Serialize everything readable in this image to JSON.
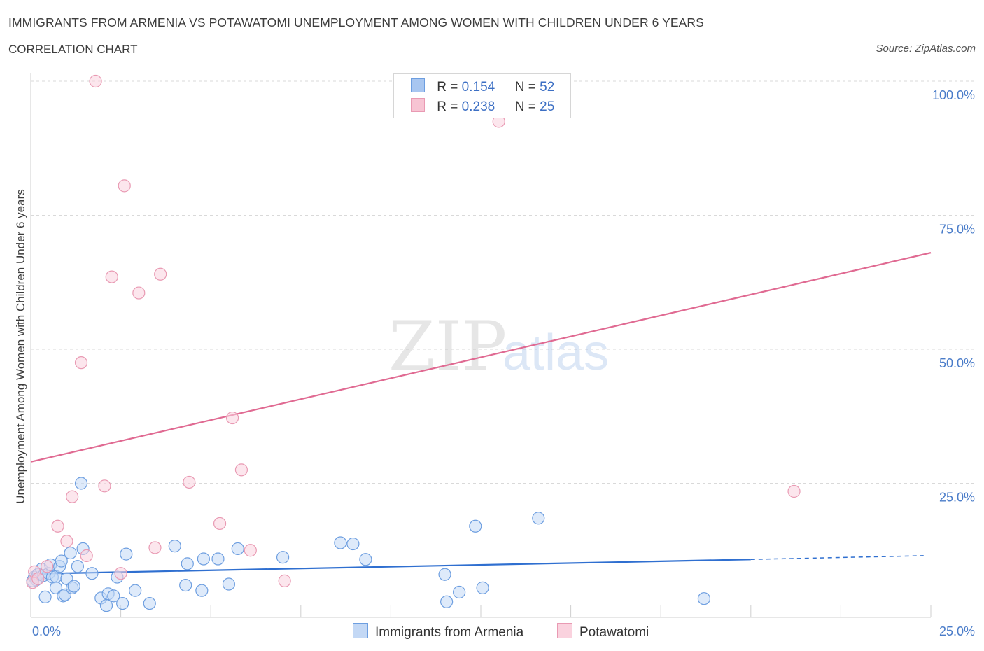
{
  "header": {
    "title": "IMMIGRANTS FROM ARMENIA VS POTAWATOMI UNEMPLOYMENT AMONG WOMEN WITH CHILDREN UNDER 6 YEARS",
    "subtitle": "CORRELATION CHART",
    "source": "Source: ZipAtlas.com"
  },
  "watermark": {
    "zip": "ZIP",
    "atlas": "atlas"
  },
  "legend": {
    "rows": [
      {
        "r_label": "R =",
        "r_value": "0.154",
        "n_label": "N =",
        "n_value": "52",
        "color": "#a8c6f0",
        "border": "#6d9ee0"
      },
      {
        "r_label": "R =",
        "r_value": "0.238",
        "n_label": "N =",
        "n_value": "25",
        "color": "#f7c4d3",
        "border": "#e99ab3"
      }
    ]
  },
  "bottom_legend": [
    {
      "label": "Immigrants from Armenia",
      "color": "#c3d8f5",
      "border": "#6d9ee0"
    },
    {
      "label": "Potawatomi",
      "color": "#fad2de",
      "border": "#e99ab3"
    }
  ],
  "chart_data": {
    "type": "scatter",
    "title": "IMMIGRANTS FROM ARMENIA VS POTAWATOMI UNEMPLOYMENT AMONG WOMEN WITH CHILDREN UNDER 6 YEARS",
    "xlabel": "",
    "ylabel": "Unemployment Among Women with Children Under 6 years",
    "xlim": [
      0,
      25
    ],
    "ylim": [
      0,
      100
    ],
    "x_tick_labels": [
      "0.0%",
      "25.0%"
    ],
    "y_tick_labels": [
      "25.0%",
      "50.0%",
      "75.0%",
      "100.0%"
    ],
    "y_ticks": [
      25,
      50,
      75,
      100
    ],
    "grid": true,
    "series": [
      {
        "name": "Immigrants from Armenia",
        "color": "#6d9ee0",
        "fill": "#c3d8f5",
        "trend_color": "#2f6fd0",
        "trend": {
          "x0": 0,
          "y0": 8.1,
          "x1": 20,
          "y1": 10.8,
          "dashed_to_x": 24.8,
          "dashed_to_y": 11.5
        },
        "points": [
          [
            0.1,
            7.5
          ],
          [
            0.15,
            7.0
          ],
          [
            0.2,
            8.0
          ],
          [
            0.3,
            9.0
          ],
          [
            0.35,
            7.8
          ],
          [
            0.4,
            3.8
          ],
          [
            0.5,
            8.2
          ],
          [
            0.55,
            9.8
          ],
          [
            0.6,
            7.5
          ],
          [
            0.7,
            7.6
          ],
          [
            0.7,
            5.5
          ],
          [
            0.8,
            9.5
          ],
          [
            0.85,
            10.5
          ],
          [
            0.9,
            4.0
          ],
          [
            0.95,
            4.2
          ],
          [
            1.0,
            7.2
          ],
          [
            1.1,
            12.0
          ],
          [
            1.15,
            5.5
          ],
          [
            1.2,
            5.8
          ],
          [
            1.3,
            9.5
          ],
          [
            1.4,
            25.0
          ],
          [
            1.45,
            12.8
          ],
          [
            1.7,
            8.2
          ],
          [
            1.95,
            3.6
          ],
          [
            2.1,
            2.2
          ],
          [
            2.15,
            4.4
          ],
          [
            2.3,
            4.0
          ],
          [
            2.4,
            7.5
          ],
          [
            2.55,
            2.6
          ],
          [
            2.65,
            11.8
          ],
          [
            2.9,
            5.0
          ],
          [
            3.3,
            2.6
          ],
          [
            4.0,
            13.3
          ],
          [
            4.3,
            6.0
          ],
          [
            4.35,
            10.0
          ],
          [
            4.75,
            5.0
          ],
          [
            4.8,
            10.9
          ],
          [
            5.2,
            10.9
          ],
          [
            5.5,
            6.2
          ],
          [
            5.75,
            12.8
          ],
          [
            7.0,
            11.2
          ],
          [
            8.6,
            13.9
          ],
          [
            8.95,
            13.7
          ],
          [
            9.3,
            10.8
          ],
          [
            11.5,
            8.0
          ],
          [
            11.55,
            2.9
          ],
          [
            11.9,
            4.7
          ],
          [
            12.35,
            17.0
          ],
          [
            12.55,
            5.5
          ],
          [
            14.1,
            18.5
          ],
          [
            18.7,
            3.5
          ],
          [
            0.05,
            6.8
          ]
        ]
      },
      {
        "name": "Potawatomi",
        "color": "#e99ab3",
        "fill": "#fad2de",
        "trend_color": "#e06a92",
        "trend": {
          "x0": 0,
          "y0": 29.0,
          "x1": 25,
          "y1": 68.0
        },
        "points": [
          [
            0.05,
            6.5
          ],
          [
            0.1,
            8.5
          ],
          [
            0.45,
            9.5
          ],
          [
            0.75,
            17.0
          ],
          [
            1.0,
            14.2
          ],
          [
            1.15,
            22.5
          ],
          [
            1.4,
            47.5
          ],
          [
            1.55,
            11.5
          ],
          [
            1.8,
            100.0
          ],
          [
            2.05,
            24.5
          ],
          [
            2.25,
            63.5
          ],
          [
            2.5,
            8.2
          ],
          [
            2.6,
            80.5
          ],
          [
            3.0,
            60.5
          ],
          [
            3.45,
            13.0
          ],
          [
            3.6,
            64.0
          ],
          [
            4.4,
            25.2
          ],
          [
            5.25,
            17.5
          ],
          [
            5.6,
            37.2
          ],
          [
            5.85,
            27.5
          ],
          [
            6.1,
            12.5
          ],
          [
            7.05,
            6.8
          ],
          [
            13.0,
            92.5
          ],
          [
            21.2,
            23.5
          ],
          [
            0.2,
            7.2
          ]
        ]
      }
    ]
  },
  "y_axis_label": "Unemployment Among Women with Children Under 6 years"
}
